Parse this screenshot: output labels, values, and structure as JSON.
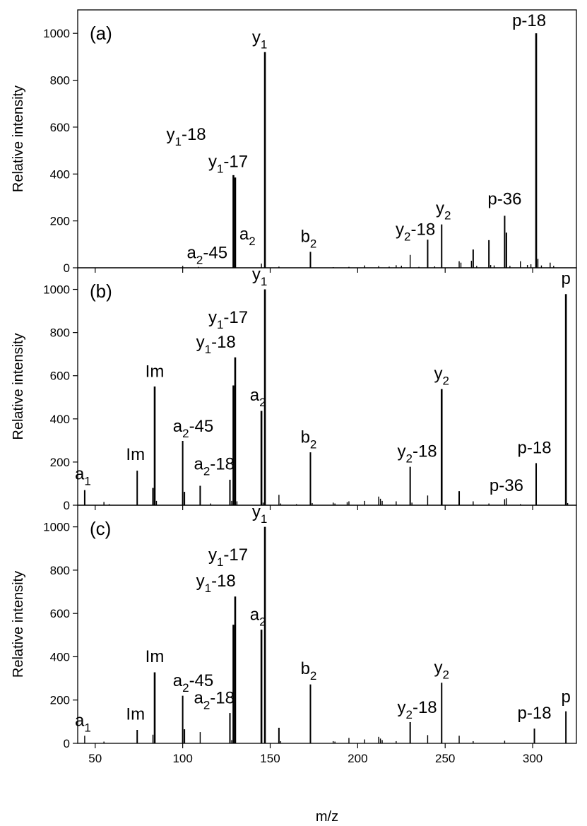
{
  "chart_data": [
    {
      "type": "bar",
      "panel_label": "(a)",
      "ylabel": "Relative intensity",
      "ylim": [
        0,
        1100
      ],
      "xlim": [
        40,
        325
      ],
      "yticks": [
        0,
        200,
        400,
        600,
        800,
        1000
      ],
      "xticks": [
        50,
        100,
        150,
        200,
        250,
        300
      ],
      "peaks": [
        {
          "x": 100,
          "y": 8
        },
        {
          "x": 109,
          "y": 4
        },
        {
          "x": 129,
          "y": 395
        },
        {
          "x": 130,
          "y": 385
        },
        {
          "x": 145,
          "y": 18
        },
        {
          "x": 147,
          "y": 920
        },
        {
          "x": 155,
          "y": 5
        },
        {
          "x": 173,
          "y": 68
        },
        {
          "x": 186,
          "y": 3
        },
        {
          "x": 195,
          "y": 4
        },
        {
          "x": 204,
          "y": 10
        },
        {
          "x": 212,
          "y": 7
        },
        {
          "x": 218,
          "y": 5
        },
        {
          "x": 222,
          "y": 11
        },
        {
          "x": 225,
          "y": 9
        },
        {
          "x": 230,
          "y": 55
        },
        {
          "x": 235,
          "y": 4
        },
        {
          "x": 240,
          "y": 120
        },
        {
          "x": 244,
          "y": 6
        },
        {
          "x": 248,
          "y": 185
        },
        {
          "x": 258,
          "y": 28
        },
        {
          "x": 259,
          "y": 22
        },
        {
          "x": 265,
          "y": 30
        },
        {
          "x": 266,
          "y": 78
        },
        {
          "x": 268,
          "y": 8
        },
        {
          "x": 275,
          "y": 118
        },
        {
          "x": 276,
          "y": 12
        },
        {
          "x": 278,
          "y": 10
        },
        {
          "x": 284,
          "y": 222
        },
        {
          "x": 285,
          "y": 150
        },
        {
          "x": 287,
          "y": 8
        },
        {
          "x": 293,
          "y": 28
        },
        {
          "x": 297,
          "y": 12
        },
        {
          "x": 299,
          "y": 15
        },
        {
          "x": 302,
          "y": 1000
        },
        {
          "x": 303,
          "y": 38
        },
        {
          "x": 305,
          "y": 10
        },
        {
          "x": 310,
          "y": 22
        },
        {
          "x": 312,
          "y": 8
        }
      ],
      "annotations": [
        {
          "main": "a",
          "sub": "2",
          "tail": "-45",
          "x": 114,
          "y": 40
        },
        {
          "main": "y",
          "sub": "1",
          "tail": "-18",
          "x": 102,
          "y": 545
        },
        {
          "main": "y",
          "sub": "1",
          "tail": "-17",
          "x": 126,
          "y": 430
        },
        {
          "main": "a",
          "sub": "2",
          "tail": "",
          "x": 137,
          "y": 120
        },
        {
          "main": "y",
          "sub": "1",
          "tail": "",
          "x": 144,
          "y": 960
        },
        {
          "main": "b",
          "sub": "2",
          "tail": "",
          "x": 172,
          "y": 110
        },
        {
          "main": "y",
          "sub": "2",
          "tail": "-18",
          "x": 233,
          "y": 140
        },
        {
          "main": "y",
          "sub": "2",
          "tail": "",
          "x": 249,
          "y": 230
        },
        {
          "main": "p-36",
          "sub": "",
          "tail": "",
          "x": 284,
          "y": 270
        },
        {
          "main": "p-18",
          "sub": "",
          "tail": "",
          "x": 298,
          "y": 1030
        }
      ]
    },
    {
      "type": "bar",
      "panel_label": "(b)",
      "ylabel": "Relative intensity",
      "ylim": [
        0,
        1100
      ],
      "xlim": [
        40,
        325
      ],
      "yticks": [
        0,
        200,
        400,
        600,
        800,
        1000
      ],
      "xticks": [
        50,
        100,
        150,
        200,
        250,
        300
      ],
      "peaks": [
        {
          "x": 44,
          "y": 70
        },
        {
          "x": 55,
          "y": 15
        },
        {
          "x": 58,
          "y": 5
        },
        {
          "x": 74,
          "y": 160
        },
        {
          "x": 83,
          "y": 80
        },
        {
          "x": 84,
          "y": 550
        },
        {
          "x": 85,
          "y": 20
        },
        {
          "x": 100,
          "y": 298
        },
        {
          "x": 101,
          "y": 62
        },
        {
          "x": 110,
          "y": 90
        },
        {
          "x": 116,
          "y": 8
        },
        {
          "x": 127,
          "y": 118
        },
        {
          "x": 128,
          "y": 20
        },
        {
          "x": 129,
          "y": 555
        },
        {
          "x": 130,
          "y": 685
        },
        {
          "x": 131,
          "y": 18
        },
        {
          "x": 145,
          "y": 437
        },
        {
          "x": 146,
          "y": 12
        },
        {
          "x": 147,
          "y": 1000
        },
        {
          "x": 155,
          "y": 48
        },
        {
          "x": 156,
          "y": 8
        },
        {
          "x": 165,
          "y": 5
        },
        {
          "x": 173,
          "y": 245
        },
        {
          "x": 174,
          "y": 10
        },
        {
          "x": 186,
          "y": 12
        },
        {
          "x": 187,
          "y": 8
        },
        {
          "x": 194,
          "y": 14
        },
        {
          "x": 195,
          "y": 18
        },
        {
          "x": 204,
          "y": 20
        },
        {
          "x": 212,
          "y": 40
        },
        {
          "x": 213,
          "y": 30
        },
        {
          "x": 214,
          "y": 20
        },
        {
          "x": 222,
          "y": 18
        },
        {
          "x": 230,
          "y": 178
        },
        {
          "x": 231,
          "y": 12
        },
        {
          "x": 240,
          "y": 45
        },
        {
          "x": 248,
          "y": 538
        },
        {
          "x": 258,
          "y": 65
        },
        {
          "x": 266,
          "y": 18
        },
        {
          "x": 275,
          "y": 8
        },
        {
          "x": 284,
          "y": 28
        },
        {
          "x": 285,
          "y": 32
        },
        {
          "x": 293,
          "y": 5
        },
        {
          "x": 302,
          "y": 195
        },
        {
          "x": 319,
          "y": 978
        },
        {
          "x": 320,
          "y": 10
        }
      ],
      "annotations": [
        {
          "main": "a",
          "sub": "1",
          "tail": "",
          "x": 43,
          "y": 120
        },
        {
          "main": "Im",
          "sub": "",
          "tail": "",
          "x": 73,
          "y": 210
        },
        {
          "main": "Im",
          "sub": "",
          "tail": "",
          "x": 84,
          "y": 595
        },
        {
          "main": "a",
          "sub": "2",
          "tail": "-45",
          "x": 106,
          "y": 340
        },
        {
          "main": "a",
          "sub": "2",
          "tail": "-18",
          "x": 118,
          "y": 165
        },
        {
          "main": "y",
          "sub": "1",
          "tail": "-18",
          "x": 119,
          "y": 730
        },
        {
          "main": "y",
          "sub": "1",
          "tail": "-17",
          "x": 126,
          "y": 845
        },
        {
          "main": "a",
          "sub": "2",
          "tail": "",
          "x": 143,
          "y": 485
        },
        {
          "main": "y",
          "sub": "1",
          "tail": "",
          "x": 144,
          "y": 1045
        },
        {
          "main": "b",
          "sub": "2",
          "tail": "",
          "x": 172,
          "y": 290
        },
        {
          "main": "y",
          "sub": "2",
          "tail": "-18",
          "x": 234,
          "y": 225
        },
        {
          "main": "y",
          "sub": "2",
          "tail": "",
          "x": 248,
          "y": 585
        },
        {
          "main": "p-36",
          "sub": "",
          "tail": "",
          "x": 285,
          "y": 65
        },
        {
          "main": "p-18",
          "sub": "",
          "tail": "",
          "x": 301,
          "y": 240
        },
        {
          "main": "p",
          "sub": "",
          "tail": "",
          "x": 319,
          "y": 1025
        }
      ]
    },
    {
      "type": "bar",
      "panel_label": "(c)",
      "ylabel": "Relative intensity",
      "xlabel": "m/z",
      "ylim": [
        0,
        1100
      ],
      "xlim": [
        40,
        325
      ],
      "yticks": [
        0,
        200,
        400,
        600,
        800,
        1000
      ],
      "xticks": [
        50,
        100,
        150,
        200,
        250,
        300
      ],
      "peaks": [
        {
          "x": 44,
          "y": 35
        },
        {
          "x": 55,
          "y": 8
        },
        {
          "x": 74,
          "y": 62
        },
        {
          "x": 83,
          "y": 40
        },
        {
          "x": 84,
          "y": 328
        },
        {
          "x": 100,
          "y": 220
        },
        {
          "x": 101,
          "y": 65
        },
        {
          "x": 110,
          "y": 52
        },
        {
          "x": 127,
          "y": 140
        },
        {
          "x": 128,
          "y": 15
        },
        {
          "x": 129,
          "y": 548
        },
        {
          "x": 130,
          "y": 678
        },
        {
          "x": 145,
          "y": 525
        },
        {
          "x": 147,
          "y": 1000
        },
        {
          "x": 155,
          "y": 72
        },
        {
          "x": 156,
          "y": 10
        },
        {
          "x": 173,
          "y": 272
        },
        {
          "x": 186,
          "y": 10
        },
        {
          "x": 187,
          "y": 8
        },
        {
          "x": 195,
          "y": 25
        },
        {
          "x": 204,
          "y": 18
        },
        {
          "x": 212,
          "y": 30
        },
        {
          "x": 213,
          "y": 22
        },
        {
          "x": 214,
          "y": 15
        },
        {
          "x": 222,
          "y": 10
        },
        {
          "x": 230,
          "y": 98
        },
        {
          "x": 240,
          "y": 38
        },
        {
          "x": 248,
          "y": 280
        },
        {
          "x": 258,
          "y": 35
        },
        {
          "x": 266,
          "y": 10
        },
        {
          "x": 284,
          "y": 12
        },
        {
          "x": 301,
          "y": 68
        },
        {
          "x": 319,
          "y": 148
        }
      ],
      "annotations": [
        {
          "main": "a",
          "sub": "1",
          "tail": "",
          "x": 43,
          "y": 80
        },
        {
          "main": "Im",
          "sub": "",
          "tail": "",
          "x": 73,
          "y": 110
        },
        {
          "main": "Im",
          "sub": "",
          "tail": "",
          "x": 84,
          "y": 375
        },
        {
          "main": "a",
          "sub": "2",
          "tail": "-45",
          "x": 106,
          "y": 265
        },
        {
          "main": "a",
          "sub": "2",
          "tail": "-18",
          "x": 118,
          "y": 185
        },
        {
          "main": "y",
          "sub": "1",
          "tail": "-18",
          "x": 119,
          "y": 725
        },
        {
          "main": "y",
          "sub": "1",
          "tail": "-17",
          "x": 126,
          "y": 845
        },
        {
          "main": "a",
          "sub": "2",
          "tail": "",
          "x": 143,
          "y": 570
        },
        {
          "main": "y",
          "sub": "1",
          "tail": "",
          "x": 144,
          "y": 1045
        },
        {
          "main": "b",
          "sub": "2",
          "tail": "",
          "x": 172,
          "y": 320
        },
        {
          "main": "y",
          "sub": "2",
          "tail": "-18",
          "x": 234,
          "y": 140
        },
        {
          "main": "y",
          "sub": "2",
          "tail": "",
          "x": 248,
          "y": 325
        },
        {
          "main": "p-18",
          "sub": "",
          "tail": "",
          "x": 301,
          "y": 115
        },
        {
          "main": "p",
          "sub": "",
          "tail": "",
          "x": 319,
          "y": 190
        }
      ]
    }
  ]
}
